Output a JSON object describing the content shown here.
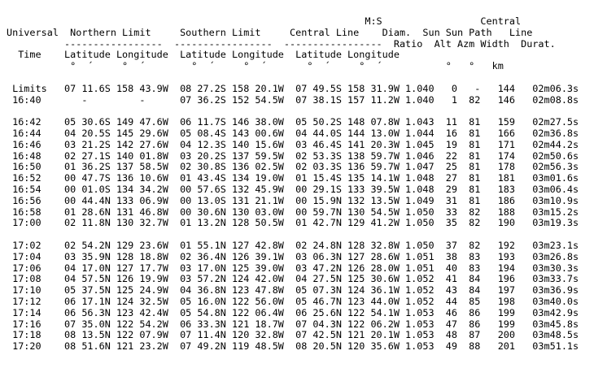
{
  "header": [
    "                                                              M:S                 Central",
    "Universal  Northern Limit     Southern Limit     Central Line    Diam.  Sun Sun Path   Line",
    "          -----------------  -----------------  -----------------  Ratio  Alt Azm Width  Durat.",
    "  Time    Latitude Longitude  Latitude Longitude  Latitude Longitude",
    "           °  ´     °  ´        °  ´     °  ´       °  ´     °  ´           °   °   km"
  ],
  "rows": [
    "",
    " Limits   07 11.6S 158 43.9W  08 27.2S 158 20.1W  07 49.5S 158 31.9W 1.040   0   -   144   02m06.3s",
    " 16:40       -         -      07 36.2S 152 54.5W  07 38.1S 157 11.2W 1.040   1  82   146   02m08.8s",
    "",
    " 16:42    05 30.6S 149 47.6W  06 11.7S 146 38.0W  05 50.2S 148 07.8W 1.043  11  81   159   02m27.5s",
    " 16:44    04 20.5S 145 29.6W  05 08.4S 143 00.6W  04 44.0S 144 13.0W 1.044  16  81   166   02m36.8s",
    " 16:46    03 21.2S 142 27.6W  04 12.3S 140 15.6W  03 46.4S 141 20.3W 1.045  19  81   171   02m44.2s",
    " 16:48    02 27.1S 140 01.8W  03 20.2S 137 59.5W  02 53.3S 138 59.7W 1.046  22  81   174   02m50.6s",
    " 16:50    01 36.2S 137 58.5W  02 30.8S 136 02.5W  02 03.3S 136 59.7W 1.047  25  81   178   02m56.3s",
    " 16:52    00 47.7S 136 10.6W  01 43.4S 134 19.0W  01 15.4S 135 14.1W 1.048  27  81   181   03m01.6s",
    " 16:54    00 01.0S 134 34.2W  00 57.6S 132 45.9W  00 29.1S 133 39.5W 1.048  29  81   183   03m06.4s",
    " 16:56    00 44.4N 133 06.9W  00 13.0S 131 21.1W  00 15.9N 132 13.5W 1.049  31  81   186   03m10.9s",
    " 16:58    01 28.6N 131 46.8W  00 30.6N 130 03.0W  00 59.7N 130 54.5W 1.050  33  82   188   03m15.2s",
    " 17:00    02 11.8N 130 32.7W  01 13.2N 128 50.5W  01 42.7N 129 41.2W 1.050  35  82   190   03m19.3s",
    "",
    " 17:02    02 54.2N 129 23.6W  01 55.1N 127 42.8W  02 24.8N 128 32.8W 1.050  37  82   192   03m23.1s",
    " 17:04    03 35.9N 128 18.8W  02 36.4N 126 39.1W  03 06.3N 127 28.6W 1.051  38  83   193   03m26.8s",
    " 17:06    04 17.0N 127 17.7W  03 17.0N 125 39.0W  03 47.2N 126 28.0W 1.051  40  83   194   03m30.3s",
    " 17:08    04 57.5N 126 19.9W  03 57.2N 124 42.0W  04 27.5N 125 30.6W 1.052  41  84   196   03m33.7s",
    " 17:10    05 37.5N 125 24.9W  04 36.8N 123 47.8W  05 07.3N 124 36.1W 1.052  43  84   197   03m36.9s",
    " 17:12    06 17.1N 124 32.5W  05 16.0N 122 56.0W  05 46.7N 123 44.0W 1.052  44  85   198   03m40.0s",
    " 17:14    06 56.3N 123 42.4W  05 54.8N 122 06.4W  06 25.6N 122 54.1W 1.053  46  86   199   03m42.9s",
    " 17:16    07 35.0N 122 54.2W  06 33.3N 121 18.7W  07 04.3N 122 06.2W 1.053  47  86   199   03m45.8s",
    " 17:18    08 13.5N 122 07.9W  07 11.4N 120 32.8W  07 42.5N 121 20.1W 1.053  48  87   200   03m48.5s",
    " 17:20    08 51.6N 121 23.2W  07 49.2N 119 48.5W  08 20.5N 120 35.6W 1.053  49  88   201   03m51.1s"
  ]
}
